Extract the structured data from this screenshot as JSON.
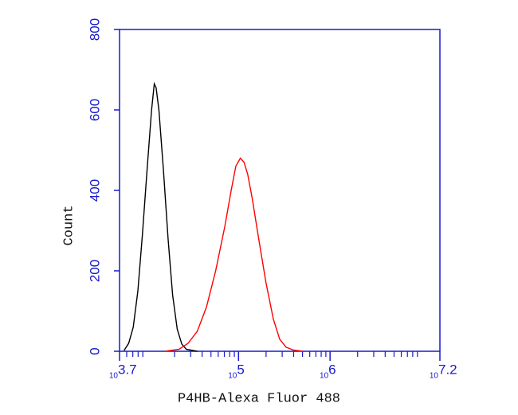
{
  "chart_data": {
    "type": "line",
    "x_label": "P4HB-Alexa Fluor 488",
    "y_label": "Count",
    "x_tick_base": "10",
    "xlim": [
      3.7,
      7.2
    ],
    "xticks": [
      3.7,
      5,
      6,
      7.2
    ],
    "ylim": [
      0,
      800
    ],
    "yticks": [
      0,
      200,
      400,
      600,
      800
    ],
    "axis_color": "#1a1acc",
    "series": [
      {
        "color": "#000000",
        "x": [
          3.75,
          3.8,
          3.85,
          3.9,
          3.95,
          4.0,
          4.05,
          4.08,
          4.1,
          4.13,
          4.18,
          4.23,
          4.28,
          4.33,
          4.38,
          4.43,
          4.5,
          4.55
        ],
        "values": [
          2,
          20,
          60,
          150,
          290,
          450,
          600,
          665,
          655,
          600,
          450,
          280,
          140,
          55,
          18,
          5,
          2,
          0
        ]
      },
      {
        "color": "#ff0000",
        "x": [
          4.2,
          4.35,
          4.45,
          4.55,
          4.65,
          4.75,
          4.85,
          4.92,
          4.97,
          5.02,
          5.06,
          5.1,
          5.15,
          5.22,
          5.3,
          5.38,
          5.45,
          5.52,
          5.6,
          5.7
        ],
        "values": [
          0,
          5,
          20,
          50,
          110,
          200,
          310,
          400,
          460,
          480,
          470,
          440,
          380,
          280,
          170,
          80,
          30,
          10,
          3,
          0
        ]
      }
    ]
  }
}
